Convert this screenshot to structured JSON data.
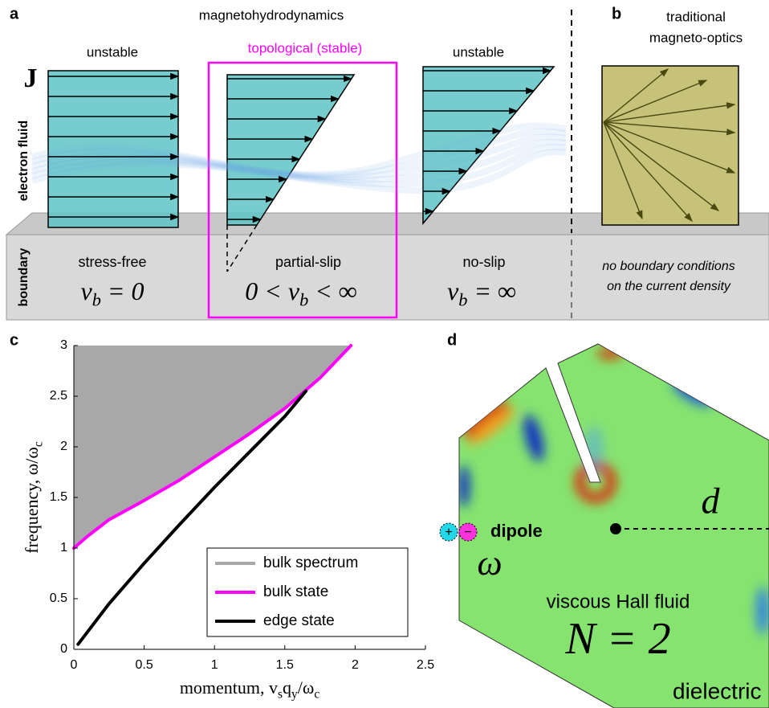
{
  "panel_a": {
    "label": "a",
    "title": "magnetohydrodynamics",
    "symbol": "J",
    "fluid_label": "electron fluid",
    "boundary_label": "boundary",
    "columns": [
      {
        "heading": "unstable",
        "condition": "stress-free",
        "formula": [
          {
            "text": "v"
          },
          {
            "text": "b",
            "sub": true
          },
          {
            "text": " = 0"
          }
        ]
      },
      {
        "heading": "topological (stable)",
        "condition": "partial-slip",
        "formula": [
          {
            "text": "0 < v"
          },
          {
            "text": "b",
            "sub": true
          },
          {
            "text": " < ∞"
          }
        ]
      },
      {
        "heading": "unstable",
        "condition": "no-slip",
        "formula": [
          {
            "text": "v"
          },
          {
            "text": "b",
            "sub": true
          },
          {
            "text": " = ∞"
          }
        ]
      }
    ]
  },
  "panel_b": {
    "label": "b",
    "title": [
      "traditional",
      "magneto-optics"
    ],
    "note": [
      "no boundary conditions",
      "on the current density"
    ]
  },
  "chart_data": {
    "type": "line",
    "panel_label": "c",
    "xlabel": [
      {
        "text": "momentum, v"
      },
      {
        "text": "s",
        "sub": true
      },
      {
        "text": "q"
      },
      {
        "text": "y",
        "sub": true
      },
      {
        "text": "/ω"
      },
      {
        "text": "c",
        "sub": true
      }
    ],
    "ylabel": [
      {
        "text": "frequency, ω/ω"
      },
      {
        "text": "c",
        "sub": true
      }
    ],
    "xlim": [
      0,
      2.5
    ],
    "ylim": [
      0,
      3
    ],
    "xticks": [
      0,
      0.5,
      1,
      1.5,
      2,
      2.5
    ],
    "yticks": [
      0,
      0.5,
      1,
      1.5,
      2,
      2.5,
      3
    ],
    "series": [
      {
        "name": "bulk spectrum",
        "color": "#a8a8a8",
        "fill": "above",
        "x": [
          0,
          0.1,
          0.25,
          0.5,
          0.75,
          1,
          1.25,
          1.5,
          1.75,
          1.97
        ],
        "values": [
          1,
          1.12,
          1.28,
          1.47,
          1.67,
          1.9,
          2.13,
          2.38,
          2.68,
          3
        ]
      },
      {
        "name": "bulk state",
        "color": "#ff00ff",
        "x": [
          0,
          0.1,
          0.25,
          0.5,
          0.75,
          1,
          1.25,
          1.5,
          1.75,
          1.97
        ],
        "values": [
          1,
          1.12,
          1.28,
          1.47,
          1.67,
          1.9,
          2.13,
          2.38,
          2.68,
          3
        ]
      },
      {
        "name": "edge state",
        "color": "#000000",
        "x": [
          0.03,
          0.25,
          0.5,
          0.75,
          1,
          1.25,
          1.5,
          1.65
        ],
        "values": [
          0.05,
          0.45,
          0.85,
          1.23,
          1.6,
          1.95,
          2.3,
          2.55
        ]
      }
    ],
    "legend": "lower right"
  },
  "panel_d": {
    "label": "d",
    "source_charges": [
      "+",
      "−"
    ],
    "source": "dipole",
    "frequency": "ω",
    "distance": "d",
    "medium": "viscous Hall fluid",
    "index": "N = 2",
    "surroundings": "dielectric"
  }
}
